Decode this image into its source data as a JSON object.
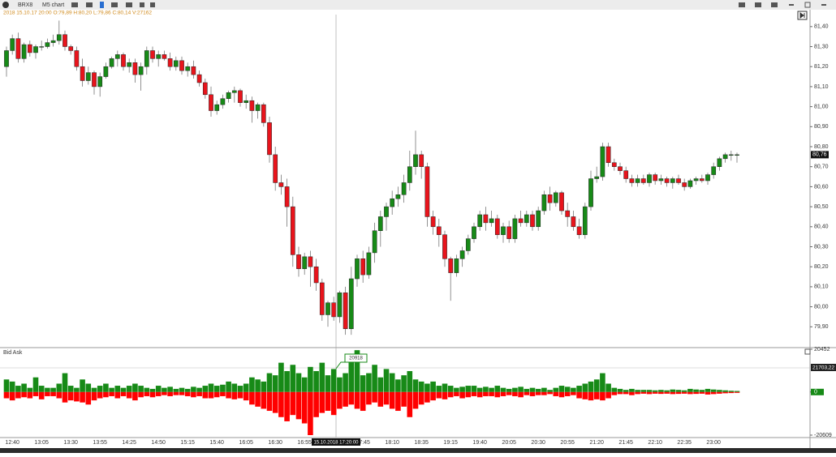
{
  "toolbar": {
    "symbol": "BRX8",
    "timeframe": "M5 chart"
  },
  "chart_data": [
    {
      "type": "candlestick",
      "info": "2018 15.10.17 20:00  O:79,89  H:80,20  L:79,86  C:80,14  V:27162",
      "categories": [
        null,
        "12:40",
        null,
        null,
        null,
        null,
        "13:05",
        null,
        null,
        null,
        null,
        "13:30",
        null,
        null,
        null,
        null,
        "13:55",
        null,
        null,
        null,
        null,
        "14:25",
        null,
        null,
        null,
        null,
        "14:50",
        null,
        null,
        null,
        null,
        "15:15",
        null,
        null,
        null,
        null,
        "15:40",
        null,
        null,
        null,
        null,
        "16:05",
        null,
        null,
        null,
        null,
        "16:30",
        null,
        null,
        null,
        null,
        "16:55",
        null,
        null,
        null,
        null,
        null,
        null,
        null,
        null,
        null,
        "17:45",
        null,
        null,
        null,
        null,
        "18:10",
        null,
        null,
        null,
        null,
        "18:35",
        null,
        null,
        null,
        null,
        "19:15",
        null,
        null,
        null,
        null,
        "19:40",
        null,
        null,
        null,
        null,
        "20:05",
        null,
        null,
        null,
        null,
        "20:30",
        null,
        null,
        null,
        null,
        "20:55",
        null,
        null,
        null,
        null,
        "21:20",
        null,
        null,
        null,
        null,
        "21:45",
        null,
        null,
        null,
        null,
        "22:10",
        null,
        null,
        null,
        null,
        "22:35",
        null,
        null,
        null,
        null,
        "23:00",
        null,
        null,
        null,
        null
      ],
      "ohlc": [
        [
          81.2,
          81.3,
          81.15,
          81.28
        ],
        [
          81.28,
          81.36,
          81.26,
          81.34
        ],
        [
          81.34,
          81.37,
          81.22,
          81.24
        ],
        [
          81.24,
          81.32,
          81.22,
          81.31
        ],
        [
          81.31,
          81.33,
          81.25,
          81.27
        ],
        [
          81.27,
          81.31,
          81.24,
          81.3
        ],
        [
          81.3,
          81.33,
          81.28,
          81.3
        ],
        [
          81.3,
          81.34,
          81.29,
          81.32
        ],
        [
          81.32,
          81.36,
          81.3,
          81.33
        ],
        [
          81.33,
          81.43,
          81.31,
          81.36
        ],
        [
          81.36,
          81.38,
          81.28,
          81.3
        ],
        [
          81.3,
          81.31,
          81.26,
          81.28
        ],
        [
          81.28,
          81.3,
          81.18,
          81.2
        ],
        [
          81.2,
          81.24,
          81.1,
          81.13
        ],
        [
          81.13,
          81.2,
          81.11,
          81.17
        ],
        [
          81.17,
          81.18,
          81.06,
          81.1
        ],
        [
          81.1,
          81.17,
          81.05,
          81.15
        ],
        [
          81.15,
          81.22,
          81.14,
          81.2
        ],
        [
          81.2,
          81.25,
          81.19,
          81.24
        ],
        [
          81.24,
          81.28,
          81.2,
          81.26
        ],
        [
          81.26,
          81.27,
          81.18,
          81.2
        ],
        [
          81.2,
          81.24,
          81.17,
          81.22
        ],
        [
          81.22,
          81.24,
          81.12,
          81.16
        ],
        [
          81.16,
          81.22,
          81.08,
          81.2
        ],
        [
          81.2,
          81.3,
          81.16,
          81.28
        ],
        [
          81.28,
          81.3,
          81.22,
          81.24
        ],
        [
          81.24,
          81.28,
          81.2,
          81.26
        ],
        [
          81.26,
          81.28,
          81.23,
          81.24
        ],
        [
          81.24,
          81.27,
          81.18,
          81.2
        ],
        [
          81.2,
          81.25,
          81.18,
          81.23
        ],
        [
          81.23,
          81.25,
          81.16,
          81.18
        ],
        [
          81.18,
          81.22,
          81.15,
          81.2
        ],
        [
          81.2,
          81.23,
          81.14,
          81.16
        ],
        [
          81.16,
          81.18,
          81.1,
          81.12
        ],
        [
          81.12,
          81.14,
          81.04,
          81.06
        ],
        [
          81.06,
          81.1,
          80.95,
          80.98
        ],
        [
          80.98,
          81.03,
          80.96,
          81.01
        ],
        [
          81.01,
          81.06,
          80.99,
          81.04
        ],
        [
          81.04,
          81.08,
          81.02,
          81.07
        ],
        [
          81.07,
          81.1,
          81.02,
          81.08
        ],
        [
          81.08,
          81.09,
          81.0,
          81.02
        ],
        [
          81.02,
          81.06,
          80.99,
          81.03
        ],
        [
          81.03,
          81.05,
          80.92,
          80.98
        ],
        [
          80.98,
          81.02,
          80.94,
          81.01
        ],
        [
          81.01,
          81.02,
          80.9,
          80.92
        ],
        [
          80.92,
          80.95,
          80.72,
          80.76
        ],
        [
          80.76,
          80.8,
          80.58,
          80.62
        ],
        [
          80.62,
          80.66,
          80.56,
          80.6
        ],
        [
          80.6,
          80.64,
          80.4,
          80.5
        ],
        [
          80.5,
          80.55,
          80.2,
          80.26
        ],
        [
          80.26,
          80.3,
          80.15,
          80.19
        ],
        [
          80.19,
          80.27,
          80.16,
          80.25
        ],
        [
          80.25,
          80.28,
          80.1,
          80.2
        ],
        [
          80.2,
          80.24,
          80.08,
          80.12
        ],
        [
          80.12,
          80.14,
          79.93,
          79.96
        ],
        [
          79.96,
          80.03,
          79.9,
          80.02
        ],
        [
          80.02,
          80.05,
          79.93,
          79.95
        ],
        [
          79.95,
          80.08,
          79.92,
          80.07
        ],
        [
          80.07,
          80.1,
          79.86,
          79.89
        ],
        [
          79.89,
          80.2,
          79.86,
          80.14
        ],
        [
          80.14,
          80.26,
          80.1,
          80.24
        ],
        [
          80.24,
          80.28,
          80.12,
          80.16
        ],
        [
          80.16,
          80.3,
          80.14,
          80.27
        ],
        [
          80.27,
          80.42,
          80.22,
          80.38
        ],
        [
          80.38,
          80.48,
          80.3,
          80.45
        ],
        [
          80.45,
          80.52,
          80.38,
          80.5
        ],
        [
          80.5,
          80.58,
          80.46,
          80.54
        ],
        [
          80.54,
          80.6,
          80.5,
          80.56
        ],
        [
          80.56,
          80.66,
          80.52,
          80.62
        ],
        [
          80.62,
          80.78,
          80.58,
          80.7
        ],
        [
          80.7,
          80.88,
          80.66,
          80.76
        ],
        [
          80.76,
          80.78,
          80.64,
          80.7
        ],
        [
          80.7,
          80.72,
          80.4,
          80.45
        ],
        [
          80.45,
          80.48,
          80.36,
          80.4
        ],
        [
          80.4,
          80.44,
          80.3,
          80.36
        ],
        [
          80.36,
          80.38,
          80.2,
          80.24
        ],
        [
          80.24,
          80.25,
          80.03,
          80.17
        ],
        [
          80.17,
          80.26,
          80.15,
          80.24
        ],
        [
          80.24,
          80.3,
          80.2,
          80.28
        ],
        [
          80.28,
          80.36,
          80.26,
          80.34
        ],
        [
          80.34,
          80.42,
          80.32,
          80.4
        ],
        [
          80.4,
          80.48,
          80.38,
          80.46
        ],
        [
          80.46,
          80.5,
          80.38,
          80.42
        ],
        [
          80.42,
          80.48,
          80.4,
          80.44
        ],
        [
          80.44,
          80.46,
          80.34,
          80.36
        ],
        [
          80.36,
          80.42,
          80.32,
          80.4
        ],
        [
          80.4,
          80.43,
          80.32,
          80.34
        ],
        [
          80.34,
          80.46,
          80.32,
          80.44
        ],
        [
          80.44,
          80.48,
          80.4,
          80.42
        ],
        [
          80.42,
          80.48,
          80.4,
          80.46
        ],
        [
          80.46,
          80.48,
          80.38,
          80.4
        ],
        [
          80.4,
          80.5,
          80.38,
          80.48
        ],
        [
          80.48,
          80.58,
          80.46,
          80.56
        ],
        [
          80.56,
          80.6,
          80.48,
          80.52
        ],
        [
          80.52,
          80.58,
          80.5,
          80.57
        ],
        [
          80.57,
          80.58,
          80.46,
          80.48
        ],
        [
          80.48,
          80.52,
          80.4,
          80.45
        ],
        [
          80.45,
          80.48,
          80.38,
          80.4
        ],
        [
          80.4,
          80.44,
          80.34,
          80.36
        ],
        [
          80.36,
          80.52,
          80.34,
          80.5
        ],
        [
          80.5,
          80.68,
          80.48,
          80.64
        ],
        [
          80.64,
          80.7,
          80.62,
          80.65
        ],
        [
          80.65,
          80.82,
          80.63,
          80.8
        ],
        [
          80.8,
          80.82,
          80.7,
          80.72
        ],
        [
          80.72,
          80.74,
          80.68,
          80.7
        ],
        [
          80.7,
          80.72,
          80.66,
          80.68
        ],
        [
          80.68,
          80.7,
          80.62,
          80.64
        ],
        [
          80.64,
          80.66,
          80.6,
          80.62
        ],
        [
          80.62,
          80.66,
          80.6,
          80.64
        ],
        [
          80.64,
          80.66,
          80.61,
          80.62
        ],
        [
          80.62,
          80.67,
          80.6,
          80.66
        ],
        [
          80.66,
          80.67,
          80.61,
          80.63
        ],
        [
          80.63,
          80.66,
          80.61,
          80.64
        ],
        [
          80.64,
          80.65,
          80.6,
          80.62
        ],
        [
          80.62,
          80.65,
          80.59,
          80.64
        ],
        [
          80.64,
          80.66,
          80.61,
          80.62
        ],
        [
          80.62,
          80.64,
          80.58,
          80.6
        ],
        [
          80.6,
          80.64,
          80.59,
          80.63
        ],
        [
          80.63,
          80.65,
          80.61,
          80.64
        ],
        [
          80.64,
          80.66,
          80.62,
          80.63
        ],
        [
          80.63,
          80.67,
          80.61,
          80.66
        ],
        [
          80.66,
          80.72,
          80.64,
          80.7
        ],
        [
          80.7,
          80.75,
          80.68,
          80.74
        ],
        [
          80.74,
          80.77,
          80.72,
          80.76
        ],
        [
          80.76,
          80.78,
          80.73,
          80.76
        ],
        [
          80.76,
          80.77,
          80.72,
          80.76
        ]
      ],
      "up_color": "#178a17",
      "down_color": "#e8141c",
      "ylim": [
        79.8,
        81.46
      ],
      "yticks": [
        {
          "value": 79.9,
          "label": "79,90"
        },
        {
          "value": 80.0,
          "label": "80,00"
        },
        {
          "value": 80.1,
          "label": "80,10"
        },
        {
          "value": 80.2,
          "label": "80,20"
        },
        {
          "value": 80.3,
          "label": "80,30"
        },
        {
          "value": 80.4,
          "label": "80,40"
        },
        {
          "value": 80.5,
          "label": "80,50"
        },
        {
          "value": 80.6,
          "label": "80,60"
        },
        {
          "value": 80.7,
          "label": "80,70"
        },
        {
          "value": 80.8,
          "label": "80,80"
        },
        {
          "value": 80.9,
          "label": "80,90"
        },
        {
          "value": 81.0,
          "label": "81,00"
        },
        {
          "value": 81.1,
          "label": "81,10"
        },
        {
          "value": 81.2,
          "label": "81,20"
        },
        {
          "value": 81.3,
          "label": "81,30"
        },
        {
          "value": 81.4,
          "label": "81,40"
        }
      ],
      "last_price": {
        "value": 80.76,
        "label": "80,76"
      },
      "crosshair_time": "15.10.2018 17:20:00"
    },
    {
      "type": "bar",
      "title": "Bid Ask",
      "series": [
        {
          "color": "#178a17",
          "values": [
            6000,
            5000,
            3000,
            4000,
            2000,
            7000,
            3000,
            2000,
            2000,
            4000,
            9000,
            3000,
            2000,
            6000,
            4000,
            2000,
            3000,
            4000,
            2000,
            3000,
            2000,
            3000,
            4000,
            3000,
            2000,
            1500,
            3000,
            2000,
            2500,
            1500,
            2000,
            1500,
            2500,
            2000,
            3000,
            4000,
            3000,
            3500,
            5000,
            4000,
            3000,
            4000,
            7000,
            6000,
            5000,
            9000,
            8000,
            14000,
            10000,
            13000,
            9000,
            7000,
            12000,
            10000,
            14000,
            8000,
            11000,
            7000,
            9000,
            15000,
            20000,
            8000,
            9000,
            13000,
            7000,
            11000,
            9000,
            6000,
            8000,
            10000,
            6000,
            5000,
            4000,
            5000,
            3000,
            4000,
            3000,
            2000,
            2500,
            3000,
            3000,
            2000,
            2500,
            2000,
            3000,
            2000,
            1500,
            2000,
            2500,
            1500,
            2000,
            1500,
            2000,
            1000,
            2000,
            3000,
            2500,
            2000,
            3000,
            4000,
            5000,
            6000,
            9000,
            4000,
            2000,
            1500,
            1000,
            1500,
            1000,
            1000,
            1000,
            800,
            1000,
            800,
            1200,
            1000,
            800,
            1500,
            1200,
            1000,
            1500,
            1200,
            1000,
            800,
            600,
            500
          ]
        },
        {
          "color": "#ff0000",
          "values": [
            -3000,
            -4000,
            -3000,
            -2500,
            -3000,
            -2000,
            -3500,
            -2000,
            -2000,
            -3000,
            -5000,
            -4000,
            -4500,
            -5000,
            -6000,
            -4000,
            -3000,
            -2500,
            -2000,
            -3000,
            -2000,
            -3000,
            -4000,
            -2500,
            -2000,
            -2500,
            -2000,
            -1500,
            -2000,
            -1500,
            -1500,
            -2000,
            -2500,
            -2000,
            -3000,
            -3000,
            -2500,
            -2000,
            -3000,
            -3500,
            -3000,
            -4000,
            -6000,
            -7000,
            -8000,
            -9000,
            -10000,
            -12000,
            -14000,
            -11000,
            -13000,
            -15000,
            -20609,
            -12000,
            -10000,
            -9000,
            -11000,
            -8000,
            -7000,
            -6000,
            -8000,
            -9000,
            -6000,
            -5000,
            -7000,
            -6000,
            -8000,
            -9000,
            -7000,
            -12000,
            -8000,
            -6000,
            -5000,
            -4000,
            -3000,
            -3500,
            -2500,
            -2000,
            -3000,
            -2500,
            -2000,
            -2500,
            -2000,
            -2000,
            -2500,
            -2000,
            -1500,
            -2000,
            -2500,
            -1500,
            -2000,
            -1500,
            -1500,
            -1000,
            -2000,
            -2500,
            -2000,
            -1500,
            -3000,
            -3500,
            -4000,
            -3500,
            -4000,
            -3000,
            -1500,
            -1000,
            -1000,
            -1500,
            -1000,
            -800,
            -1000,
            -800,
            -900,
            -800,
            -1000,
            -900,
            -800,
            -1000,
            -900,
            -800,
            -1200,
            -1000,
            -800,
            -600,
            -500,
            -400
          ]
        }
      ],
      "ylim": [
        -20609,
        20452
      ],
      "yticks": [
        20452,
        0,
        -20609
      ],
      "level_label": {
        "value": 21703.22,
        "label": "21703,22"
      },
      "tooltip": 20918
    }
  ]
}
